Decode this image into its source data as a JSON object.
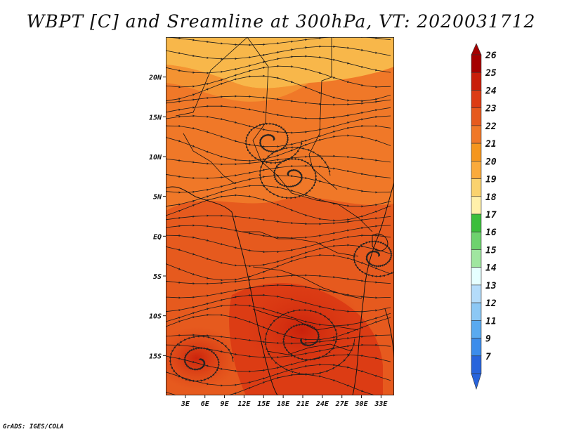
{
  "title": "WBPT [C] and Sreamline at 300hPa, VT: 2020031712",
  "credit": "GrADS: IGES/COLA",
  "map": {
    "variable": "Wet-bulb potential temperature",
    "units": "C",
    "level": "300hPa",
    "valid_time": "2020031712",
    "lon_range": [
      0,
      35
    ],
    "lat_range": [
      -20,
      25
    ],
    "lon_ticks": [
      {
        "value": 3,
        "label": "3E"
      },
      {
        "value": 6,
        "label": "6E"
      },
      {
        "value": 9,
        "label": "9E"
      },
      {
        "value": 12,
        "label": "12E"
      },
      {
        "value": 15,
        "label": "15E"
      },
      {
        "value": 18,
        "label": "18E"
      },
      {
        "value": 21,
        "label": "21E"
      },
      {
        "value": 24,
        "label": "24E"
      },
      {
        "value": 27,
        "label": "27E"
      },
      {
        "value": 30,
        "label": "30E"
      },
      {
        "value": 33,
        "label": "33E"
      }
    ],
    "lat_ticks": [
      {
        "value": 20,
        "label": "20N"
      },
      {
        "value": 15,
        "label": "15N"
      },
      {
        "value": 10,
        "label": "10N"
      },
      {
        "value": 5,
        "label": "5N"
      },
      {
        "value": 0,
        "label": "EQ"
      },
      {
        "value": -5,
        "label": "5S"
      },
      {
        "value": -10,
        "label": "10S"
      },
      {
        "value": -15,
        "label": "15S"
      }
    ]
  },
  "colorbar": {
    "levels": [
      "26",
      "25",
      "24",
      "23",
      "22",
      "21",
      "20",
      "19",
      "18",
      "17",
      "16",
      "15",
      "14",
      "13",
      "12",
      "11",
      "9",
      "7"
    ],
    "colors": [
      "#a50000",
      "#c81e0a",
      "#dc3c14",
      "#e65a1e",
      "#f07828",
      "#f5961e",
      "#faaa3c",
      "#fad26e",
      "#fff0aa",
      "#3cbe3c",
      "#6ed26e",
      "#a0e6a0",
      "#e6ffff",
      "#b4dcfa",
      "#8cc8f5",
      "#5aaaf0",
      "#3c8ceb",
      "#2864dc"
    ]
  },
  "field_colors": {
    "cool_north": "#f8b74a",
    "mid": "#f07828",
    "warm": "#e65a1e",
    "hot": "#dc3c14"
  }
}
